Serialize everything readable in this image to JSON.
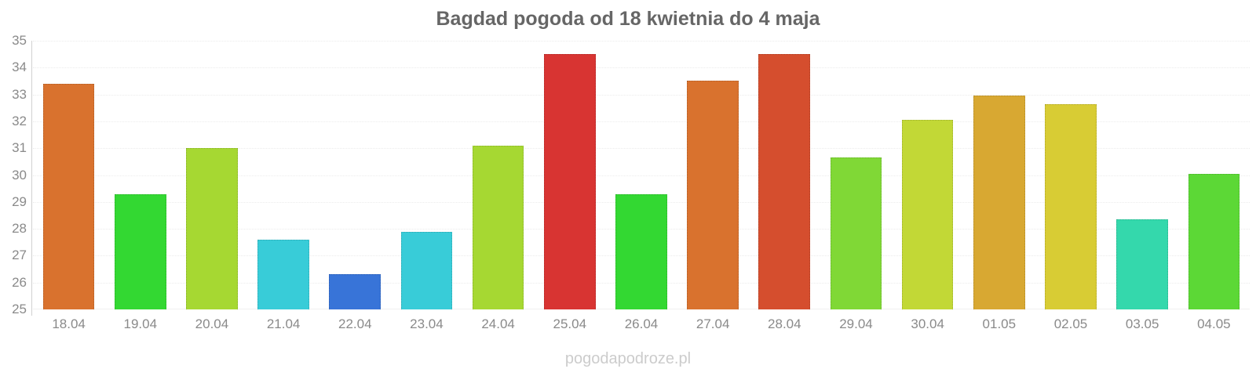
{
  "title": "Bagdad pogoda od 18 kwietnia do 4 maja",
  "watermark": "pogodapodroze.pl",
  "colors": {
    "background": "#ffffff",
    "title_text": "#666666",
    "axis_label_text": "#8a8a8a",
    "axis_line": "#d0d0d0",
    "gridline": "#ececec",
    "watermark_text": "#cccccc"
  },
  "chart_data": {
    "type": "bar",
    "title": "Bagdad pogoda od 18 kwietnia do 4 maja",
    "xlabel": "",
    "ylabel": "",
    "ylim": [
      25,
      35
    ],
    "yticks": [
      25,
      26,
      27,
      28,
      29,
      30,
      31,
      32,
      33,
      34,
      35
    ],
    "grid": "horizontal-faint-dotted",
    "legend": "none",
    "categories": [
      "18.04",
      "19.04",
      "20.04",
      "21.04",
      "22.04",
      "23.04",
      "24.04",
      "25.04",
      "26.04",
      "27.04",
      "28.04",
      "29.04",
      "30.04",
      "01.05",
      "02.05",
      "03.05",
      "04.05"
    ],
    "values": [
      33.4,
      29.3,
      31.0,
      27.6,
      26.3,
      27.9,
      31.1,
      34.5,
      29.3,
      33.5,
      34.5,
      30.65,
      32.05,
      32.95,
      32.65,
      28.35,
      30.05
    ],
    "bar_colors": [
      "#d9722e",
      "#33d832",
      "#a6d832",
      "#38ccd8",
      "#3874d8",
      "#38ccd8",
      "#a6d832",
      "#d83432",
      "#33d832",
      "#d9722e",
      "#d54e2e",
      "#80d836",
      "#c2d836",
      "#d8a832",
      "#d8cc34",
      "#34d8ac",
      "#5cd836"
    ]
  }
}
